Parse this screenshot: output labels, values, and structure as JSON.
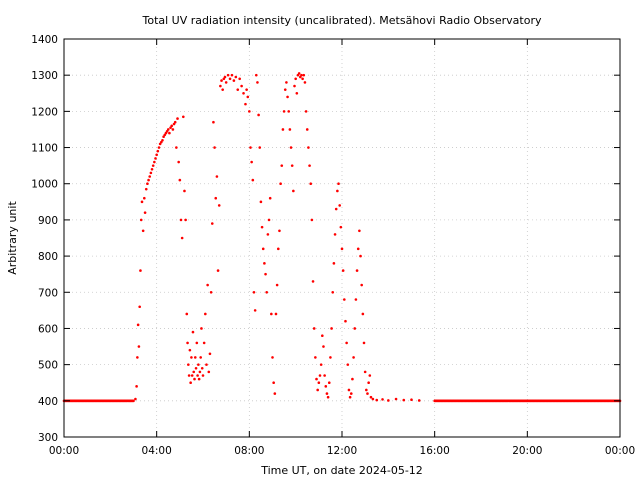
{
  "chart_data": {
    "type": "scatter",
    "title": "Total UV radiation intensity (uncalibrated). Metsähovi Radio Observatory",
    "xlabel": "Time UT, on date 2024-05-12",
    "ylabel": "Arbitrary unit",
    "xlim": [
      "00:00",
      "24:00"
    ],
    "ylim": [
      300,
      1400
    ],
    "x_ticks": [
      "00:00",
      "04:00",
      "08:00",
      "12:00",
      "16:00",
      "20:00",
      "00:00"
    ],
    "y_ticks": [
      300,
      400,
      500,
      600,
      700,
      800,
      900,
      1000,
      1100,
      1200,
      1300,
      1400
    ],
    "grid": true,
    "marker_color": "#ff0000",
    "series": [
      {
        "points": [
          [
            "00:00",
            400
          ],
          [
            "03:00",
            400
          ],
          [
            "03:05",
            405
          ],
          [
            "03:08",
            440
          ],
          [
            "03:10",
            520
          ],
          [
            "03:12",
            610
          ],
          [
            "03:14",
            550
          ],
          [
            "03:16",
            660
          ],
          [
            "03:18",
            760
          ],
          [
            "03:20",
            900
          ],
          [
            "03:22",
            950
          ],
          [
            "03:25",
            870
          ],
          [
            "03:28",
            960
          ],
          [
            "03:30",
            920
          ],
          [
            "03:33",
            985
          ],
          [
            "03:36",
            1000
          ],
          [
            "03:39",
            1010
          ],
          [
            "03:42",
            1020
          ],
          [
            "03:45",
            1030
          ],
          [
            "03:48",
            1040
          ],
          [
            "03:51",
            1050
          ],
          [
            "03:54",
            1060
          ],
          [
            "03:57",
            1070
          ],
          [
            "04:00",
            1080
          ],
          [
            "04:03",
            1090
          ],
          [
            "04:06",
            1100
          ],
          [
            "04:09",
            1110
          ],
          [
            "04:12",
            1115
          ],
          [
            "04:15",
            1120
          ],
          [
            "04:18",
            1130
          ],
          [
            "04:21",
            1135
          ],
          [
            "04:24",
            1140
          ],
          [
            "04:27",
            1145
          ],
          [
            "04:30",
            1150
          ],
          [
            "04:33",
            1140
          ],
          [
            "04:36",
            1155
          ],
          [
            "04:39",
            1160
          ],
          [
            "04:42",
            1150
          ],
          [
            "04:45",
            1165
          ],
          [
            "04:48",
            1170
          ],
          [
            "04:51",
            1100
          ],
          [
            "04:54",
            1180
          ],
          [
            "04:57",
            1060
          ],
          [
            "05:00",
            1010
          ],
          [
            "05:03",
            900
          ],
          [
            "05:06",
            850
          ],
          [
            "05:09",
            1185
          ],
          [
            "05:12",
            980
          ],
          [
            "05:15",
            900
          ],
          [
            "05:18",
            640
          ],
          [
            "05:20",
            560
          ],
          [
            "05:22",
            500
          ],
          [
            "05:24",
            470
          ],
          [
            "05:26",
            540
          ],
          [
            "05:28",
            450
          ],
          [
            "05:30",
            520
          ],
          [
            "05:32",
            470
          ],
          [
            "05:34",
            590
          ],
          [
            "05:36",
            480
          ],
          [
            "05:38",
            460
          ],
          [
            "05:40",
            520
          ],
          [
            "05:42",
            490
          ],
          [
            "05:44",
            560
          ],
          [
            "05:46",
            470
          ],
          [
            "05:48",
            500
          ],
          [
            "05:50",
            460
          ],
          [
            "05:52",
            480
          ],
          [
            "05:54",
            520
          ],
          [
            "05:56",
            600
          ],
          [
            "05:58",
            490
          ],
          [
            "06:00",
            470
          ],
          [
            "06:03",
            560
          ],
          [
            "06:06",
            640
          ],
          [
            "06:09",
            500
          ],
          [
            "06:12",
            720
          ],
          [
            "06:15",
            480
          ],
          [
            "06:18",
            530
          ],
          [
            "06:21",
            700
          ],
          [
            "06:24",
            890
          ],
          [
            "06:27",
            1170
          ],
          [
            "06:30",
            1100
          ],
          [
            "06:33",
            960
          ],
          [
            "06:36",
            1020
          ],
          [
            "06:39",
            760
          ],
          [
            "06:42",
            940
          ],
          [
            "06:45",
            1270
          ],
          [
            "06:48",
            1285
          ],
          [
            "06:51",
            1260
          ],
          [
            "06:54",
            1290
          ],
          [
            "06:57",
            1295
          ],
          [
            "07:00",
            1280
          ],
          [
            "07:05",
            1300
          ],
          [
            "07:10",
            1290
          ],
          [
            "07:15",
            1300
          ],
          [
            "07:20",
            1285
          ],
          [
            "07:25",
            1295
          ],
          [
            "07:30",
            1260
          ],
          [
            "07:35",
            1290
          ],
          [
            "07:40",
            1270
          ],
          [
            "07:45",
            1250
          ],
          [
            "07:50",
            1220
          ],
          [
            "07:53",
            1260
          ],
          [
            "07:56",
            1240
          ],
          [
            "08:00",
            1200
          ],
          [
            "08:03",
            1100
          ],
          [
            "08:06",
            1060
          ],
          [
            "08:09",
            1010
          ],
          [
            "08:12",
            700
          ],
          [
            "08:15",
            650
          ],
          [
            "08:18",
            1300
          ],
          [
            "08:21",
            1280
          ],
          [
            "08:24",
            1190
          ],
          [
            "08:27",
            1100
          ],
          [
            "08:30",
            950
          ],
          [
            "08:33",
            880
          ],
          [
            "08:36",
            820
          ],
          [
            "08:39",
            780
          ],
          [
            "08:42",
            750
          ],
          [
            "08:45",
            700
          ],
          [
            "08:48",
            860
          ],
          [
            "08:51",
            900
          ],
          [
            "08:54",
            960
          ],
          [
            "08:57",
            640
          ],
          [
            "09:00",
            520
          ],
          [
            "09:03",
            450
          ],
          [
            "09:06",
            420
          ],
          [
            "09:09",
            640
          ],
          [
            "09:12",
            720
          ],
          [
            "09:15",
            820
          ],
          [
            "09:18",
            870
          ],
          [
            "09:21",
            1000
          ],
          [
            "09:24",
            1050
          ],
          [
            "09:27",
            1150
          ],
          [
            "09:30",
            1200
          ],
          [
            "09:33",
            1260
          ],
          [
            "09:36",
            1280
          ],
          [
            "09:39",
            1240
          ],
          [
            "09:42",
            1200
          ],
          [
            "09:45",
            1150
          ],
          [
            "09:48",
            1100
          ],
          [
            "09:51",
            1050
          ],
          [
            "09:54",
            980
          ],
          [
            "09:57",
            1270
          ],
          [
            "10:00",
            1290
          ],
          [
            "10:03",
            1250
          ],
          [
            "10:06",
            1300
          ],
          [
            "10:09",
            1305
          ],
          [
            "10:12",
            1295
          ],
          [
            "10:15",
            1300
          ],
          [
            "10:18",
            1290
          ],
          [
            "10:21",
            1300
          ],
          [
            "10:24",
            1280
          ],
          [
            "10:27",
            1200
          ],
          [
            "10:30",
            1150
          ],
          [
            "10:33",
            1100
          ],
          [
            "10:36",
            1050
          ],
          [
            "10:39",
            1000
          ],
          [
            "10:42",
            900
          ],
          [
            "10:45",
            730
          ],
          [
            "10:48",
            600
          ],
          [
            "10:51",
            520
          ],
          [
            "10:54",
            460
          ],
          [
            "10:57",
            430
          ],
          [
            "11:00",
            450
          ],
          [
            "11:03",
            470
          ],
          [
            "11:06",
            500
          ],
          [
            "11:09",
            580
          ],
          [
            "11:12",
            550
          ],
          [
            "11:15",
            470
          ],
          [
            "11:18",
            440
          ],
          [
            "11:21",
            420
          ],
          [
            "11:24",
            410
          ],
          [
            "11:27",
            450
          ],
          [
            "11:30",
            520
          ],
          [
            "11:33",
            600
          ],
          [
            "11:36",
            700
          ],
          [
            "11:39",
            780
          ],
          [
            "11:42",
            860
          ],
          [
            "11:45",
            930
          ],
          [
            "11:48",
            980
          ],
          [
            "11:51",
            1000
          ],
          [
            "11:54",
            940
          ],
          [
            "11:57",
            880
          ],
          [
            "12:00",
            820
          ],
          [
            "12:03",
            760
          ],
          [
            "12:06",
            680
          ],
          [
            "12:09",
            620
          ],
          [
            "12:12",
            560
          ],
          [
            "12:15",
            500
          ],
          [
            "12:18",
            430
          ],
          [
            "12:21",
            410
          ],
          [
            "12:24",
            420
          ],
          [
            "12:27",
            460
          ],
          [
            "12:30",
            520
          ],
          [
            "12:33",
            600
          ],
          [
            "12:36",
            680
          ],
          [
            "12:39",
            760
          ],
          [
            "12:42",
            820
          ],
          [
            "12:45",
            870
          ],
          [
            "12:48",
            800
          ],
          [
            "12:51",
            720
          ],
          [
            "12:54",
            640
          ],
          [
            "12:57",
            560
          ],
          [
            "13:00",
            480
          ],
          [
            "13:03",
            430
          ],
          [
            "13:06",
            420
          ],
          [
            "13:09",
            450
          ],
          [
            "13:12",
            470
          ],
          [
            "13:15",
            410
          ],
          [
            "13:20",
            405
          ],
          [
            "13:30",
            402
          ],
          [
            "13:45",
            404
          ],
          [
            "14:00",
            401
          ],
          [
            "14:20",
            405
          ],
          [
            "14:40",
            402
          ],
          [
            "15:00",
            403
          ],
          [
            "15:20",
            401
          ],
          [
            "16:00",
            400
          ],
          [
            "20:00",
            400
          ],
          [
            "24:00",
            400
          ]
        ]
      }
    ]
  }
}
